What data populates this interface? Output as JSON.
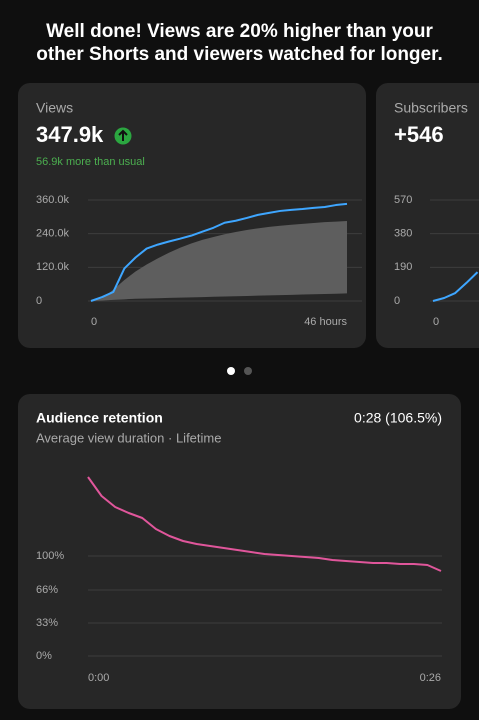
{
  "headline": [
    "Well done! Views are 20% higher than your",
    "other Shorts and viewers watched for longer."
  ],
  "cards": [
    {
      "label": "Views",
      "value": "347.9k",
      "delta": "56.9k more than usual",
      "chart_data": {
        "type": "line",
        "x": [
          0,
          2,
          4,
          6,
          8,
          10,
          12,
          14,
          16,
          18,
          20,
          22,
          24,
          26,
          28,
          30,
          32,
          34,
          36,
          38,
          40,
          42,
          44,
          46
        ],
        "xlim": [
          0,
          46
        ],
        "xticks": [
          0,
          {
            "value": 46,
            "label": "46 hours"
          }
        ],
        "ylim": [
          0,
          360000
        ],
        "yticks": [
          0,
          {
            "value": 120000,
            "label": "120.0k"
          },
          {
            "value": 240000,
            "label": "240.0k"
          },
          {
            "value": 360000,
            "label": "360.0k"
          }
        ],
        "grid": true,
        "band": {
          "color": "#5e5e5e",
          "low": [
            0,
            2000,
            4000,
            6000,
            8000,
            9000,
            10000,
            11000,
            12000,
            13000,
            14000,
            15000,
            16000,
            17000,
            18000,
            19000,
            20000,
            21000,
            22000,
            23000,
            24000,
            25000,
            26000,
            27000
          ],
          "high": [
            0,
            10000,
            40000,
            75000,
            105000,
            130000,
            152000,
            172000,
            190000,
            205000,
            218000,
            228000,
            238000,
            246000,
            253000,
            259000,
            264000,
            268000,
            272000,
            275000,
            278000,
            281000,
            283000,
            285000
          ]
        },
        "series": [
          {
            "color": "#3ea6ff",
            "values": [
              0,
              14000,
              32000,
              116000,
              155000,
              187000,
              201000,
              212000,
              222000,
              233000,
              247000,
              261000,
              279000,
              286000,
              296000,
              307000,
              314000,
              321000,
              325000,
              328000,
              332000,
              335000,
              342000,
              346000
            ]
          }
        ]
      }
    },
    {
      "label": "Subscribers",
      "value": "+546",
      "chart_data": {
        "type": "line",
        "x": [
          0,
          2,
          4,
          6,
          8
        ],
        "xlim": [
          0,
          46
        ],
        "xticks": [
          0
        ],
        "ylim": [
          0,
          570
        ],
        "yticks": [
          0,
          190,
          380,
          570
        ],
        "grid": true,
        "series": [
          {
            "color": "#3ea6ff",
            "values": [
              0,
              17,
              45,
              102,
              163
            ]
          }
        ]
      }
    }
  ],
  "retention": {
    "title": "Audience retention",
    "value": "0:28 (106.5%)",
    "subtitle": "Average view duration · Lifetime",
    "chart_data": {
      "type": "line",
      "x": [
        0,
        1,
        2,
        3,
        4,
        5,
        6,
        7,
        8,
        9,
        10,
        11,
        12,
        13,
        14,
        15,
        16,
        17,
        18,
        19,
        20,
        21,
        22,
        23,
        24,
        25,
        26
      ],
      "xlim": [
        0,
        26
      ],
      "xticks": [
        {
          "value": 0,
          "label": "0:00"
        },
        {
          "value": 26,
          "label": "0:26"
        }
      ],
      "ylim": [
        0,
        180
      ],
      "yticks": [
        {
          "value": 0,
          "label": "0%"
        },
        {
          "value": 33,
          "label": "33%"
        },
        {
          "value": 66,
          "label": "66%"
        },
        {
          "value": 100,
          "label": "100%"
        }
      ],
      "grid": true,
      "series": [
        {
          "color": "#e0569b",
          "values": [
            179,
            160,
            149,
            143,
            138,
            127,
            120,
            115,
            112,
            110,
            108,
            106,
            104,
            102,
            101,
            100,
            99,
            98,
            96,
            95,
            94,
            93,
            93,
            92,
            92,
            91,
            85
          ]
        }
      ]
    }
  }
}
